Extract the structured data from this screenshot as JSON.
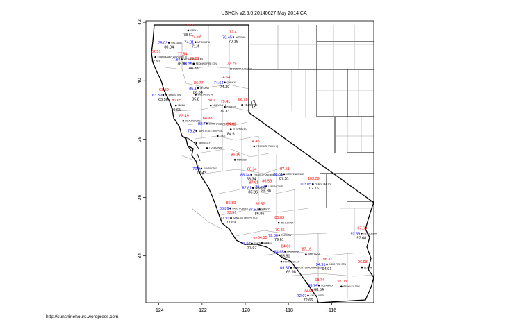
{
  "title": "USHCN v2.5.0.20140627 May 2014 CA",
  "credit": "http://sunshinehours.wordpress.com",
  "colors": {
    "red": "#ff0000",
    "blue": "#0000ff",
    "black": "#000000",
    "county": "#999999",
    "border": "#000000"
  },
  "axes": {
    "xlim": [
      -124.6,
      -114.05
    ],
    "ylim": [
      32.4,
      42.05
    ],
    "x_ticks": [
      {
        "value": -124,
        "label": "-124"
      },
      {
        "value": -122,
        "label": "-122"
      },
      {
        "value": -120,
        "label": "-120"
      },
      {
        "value": -118,
        "label": "-118"
      },
      {
        "value": -116,
        "label": "-116"
      }
    ],
    "y_ticks": [
      {
        "value": 42,
        "label": "42"
      },
      {
        "value": 40,
        "label": "40"
      },
      {
        "value": 38,
        "label": "38"
      },
      {
        "value": 36,
        "label": "36"
      },
      {
        "value": 34,
        "label": "34"
      }
    ]
  },
  "stations": [
    {
      "name": "YREKA",
      "lon": -122.64,
      "lat": 41.72,
      "red": "78.86",
      "blue": "",
      "black": "78.61"
    },
    {
      "name": "MT SHASTA",
      "lon": -122.31,
      "lat": 41.32,
      "red": "73.53",
      "blue": "74.81",
      "black": "71.4"
    },
    {
      "name": "ORLEANS",
      "lon": -123.53,
      "lat": 41.3,
      "red": "",
      "blue": "75.03",
      "black": "80.84"
    },
    {
      "name": "ALTURAS",
      "lon": -120.55,
      "lat": 41.49,
      "red": "72.41",
      "blue": "70.45",
      "black": "70.18"
    },
    {
      "name": "EUREKA WFO WOODLEY IS",
      "lon": -124.16,
      "lat": 40.81,
      "red": "62.51",
      "blue": "",
      "black": "62.51"
    },
    {
      "name": "WEAVERVILLE RS",
      "lon": -122.94,
      "lat": 40.73,
      "red": "77.94",
      "blue": "77.84",
      "black": "78.96"
    },
    {
      "name": "REDDING FIRE STN",
      "lon": -122.39,
      "lat": 40.58,
      "red": "89.33",
      "blue": "88.35",
      "black": "88.33"
    },
    {
      "name": "SUSANVILLE 2SW",
      "lon": -120.66,
      "lat": 40.4,
      "red": "72.79",
      "blue": "",
      "black": ""
    },
    {
      "name": "QUINCY",
      "lon": -120.95,
      "lat": 39.94,
      "red": "74.64",
      "blue": "74.64",
      "black": "74.39"
    },
    {
      "name": "ORLAND",
      "lon": -122.19,
      "lat": 39.75,
      "red": "86.77",
      "blue": "86.1",
      "black": "86.04"
    },
    {
      "name": "FT BRAGG 5 N",
      "lon": -123.8,
      "lat": 39.51,
      "red": "63.89",
      "blue": "63.39",
      "black": "63.56"
    },
    {
      "name": "WILLOWS 6 W",
      "lon": -122.3,
      "lat": 39.52,
      "red": "",
      "blue": "",
      "black": "85.8"
    },
    {
      "name": "MARYSVILLE",
      "lon": -121.6,
      "lat": 39.15,
      "red": "88.1",
      "blue": "",
      "black": ""
    },
    {
      "name": "COLFAX",
      "lon": -120.95,
      "lat": 39.1,
      "red": "79.41",
      "blue": "",
      "black": "79.33"
    },
    {
      "name": "TAHOE CITY",
      "lon": -120.14,
      "lat": 39.17,
      "red": "66.76",
      "blue": "",
      "black": ""
    },
    {
      "name": "UKIAH",
      "lon": -123.21,
      "lat": 39.15,
      "red": "80.65",
      "blue": "",
      "black": "80.65"
    },
    {
      "name": "DAVIS 2 WSW EXP FARM",
      "lon": -121.78,
      "lat": 38.53,
      "red": "84.98",
      "blue": "83.7",
      "black": ""
    },
    {
      "name": "HEALDSBURG",
      "lon": -122.87,
      "lat": 38.62,
      "red": "83.49",
      "blue": "",
      "black": ""
    },
    {
      "name": "NAPA STATE HOSPITAL",
      "lon": -122.26,
      "lat": 38.28,
      "red": "",
      "blue": "79.2",
      "black": ""
    },
    {
      "name": "ELECTRA P H",
      "lon": -120.67,
      "lat": 38.33,
      "red": "84.62",
      "blue": "",
      "black": "84.6"
    },
    {
      "name": "LODI",
      "lon": -121.28,
      "lat": 38.11,
      "red": "",
      "blue": "",
      "black": ""
    },
    {
      "name": "BERKELEY",
      "lon": -122.26,
      "lat": 37.87,
      "red": "",
      "blue": "",
      "black": ""
    },
    {
      "name": "LIVERMORE",
      "lon": -121.77,
      "lat": 37.69,
      "red": "",
      "blue": "",
      "black": ""
    },
    {
      "name": "YOSEMITE PARK HQ",
      "lon": -119.59,
      "lat": 37.75,
      "red": "74.46",
      "blue": "",
      "black": ""
    },
    {
      "name": "MERCED",
      "lon": -120.48,
      "lat": 37.29,
      "red": "86.16",
      "blue": "",
      "black": ""
    },
    {
      "name": "SANTA CRUZ",
      "lon": -122.03,
      "lat": 36.99,
      "red": "",
      "blue": "76.9",
      "black": "77.43"
    },
    {
      "name": "FRESNO YOSEMITE INTL AP",
      "lon": -119.72,
      "lat": 36.78,
      "red": "88.34",
      "blue": "88.34",
      "black": "88.34"
    },
    {
      "name": "INDEPENDENCE",
      "lon": -118.2,
      "lat": 36.8,
      "red": "87.51",
      "blue": "88.51",
      "black": "87.51"
    },
    {
      "name": "DEATH VALLEY",
      "lon": -116.87,
      "lat": 36.46,
      "red": "103.09",
      "blue": "103.05",
      "black": "102.76"
    },
    {
      "name": "LEMON COVE",
      "lon": -119.03,
      "lat": 36.38,
      "red": "86.59",
      "blue": "86.59",
      "black": "86.36"
    },
    {
      "name": "HANFORD",
      "lon": -119.64,
      "lat": 36.33,
      "red": "87.61",
      "blue": "87.61",
      "black": "86.85"
    },
    {
      "name": "PASO ROBLES",
      "lon": -120.69,
      "lat": 35.63,
      "red": "86.89",
      "blue": "86.89",
      "black": ""
    },
    {
      "name": "WASCO",
      "lon": -119.34,
      "lat": 35.6,
      "red": "87.57",
      "blue": "87.57",
      "black": "86.86"
    },
    {
      "name": "SAN LUIS OBISPO POLY",
      "lon": -120.66,
      "lat": 35.3,
      "red": "77.91",
      "blue": "77.91",
      "black": "77.69"
    },
    {
      "name": "TEHACHAPI",
      "lon": -118.45,
      "lat": 35.13,
      "red": "85.03",
      "blue": "",
      "black": ""
    },
    {
      "name": "FAIRMONT",
      "lon": -118.43,
      "lat": 34.71,
      "red": "79.86",
      "blue": "79.86",
      "black": "79.61"
    },
    {
      "name": "SANTA BARBARA",
      "lon": -119.69,
      "lat": 34.42,
      "red": "77.97",
      "blue": "77.97",
      "black": "77.97"
    },
    {
      "name": "OJAI",
      "lon": -119.24,
      "lat": 34.45,
      "red": "84.55",
      "blue": "",
      "black": ""
    },
    {
      "name": "PASADENA",
      "lon": -118.15,
      "lat": 34.15,
      "red": "84.66",
      "blue": "84.65",
      "black": "85.51"
    },
    {
      "name": "REDLANDS",
      "lon": -117.19,
      "lat": 34.05,
      "red": "87.16",
      "blue": "",
      "black": ""
    },
    {
      "name": "INDIO FIRE STN",
      "lon": -116.22,
      "lat": 33.71,
      "red": "96.31",
      "blue": "94.91",
      "black": "94.91"
    },
    {
      "name": "TORRANCE AP",
      "lon": -118.33,
      "lat": 33.8,
      "red": "",
      "blue": "",
      "black": ""
    },
    {
      "name": "NEWPORT BEACH HARBOR",
      "lon": -117.88,
      "lat": 33.6,
      "red": "",
      "blue": "69.37",
      "black": "69.98"
    },
    {
      "name": "CUYAMACA",
      "lon": -116.59,
      "lat": 32.99,
      "red": "68.74",
      "blue": "68.74",
      "black": "68.54"
    },
    {
      "name": "BRAWLEY 2SW",
      "lon": -115.55,
      "lat": 32.95,
      "red": "97.03",
      "blue": "",
      "black": ""
    },
    {
      "name": "CHULA VISTA",
      "lon": -117.09,
      "lat": 32.64,
      "red": "72.81",
      "blue": "72.07",
      "black": "72.66"
    },
    {
      "name": "NEEDLES AP",
      "lon": -114.62,
      "lat": 34.77,
      "red": "97.69",
      "blue": "97.68",
      "black": "97.68"
    },
    {
      "name": "BLYTHE",
      "lon": -114.6,
      "lat": 33.61,
      "red": "96.98",
      "blue": "",
      "black": ""
    }
  ]
}
